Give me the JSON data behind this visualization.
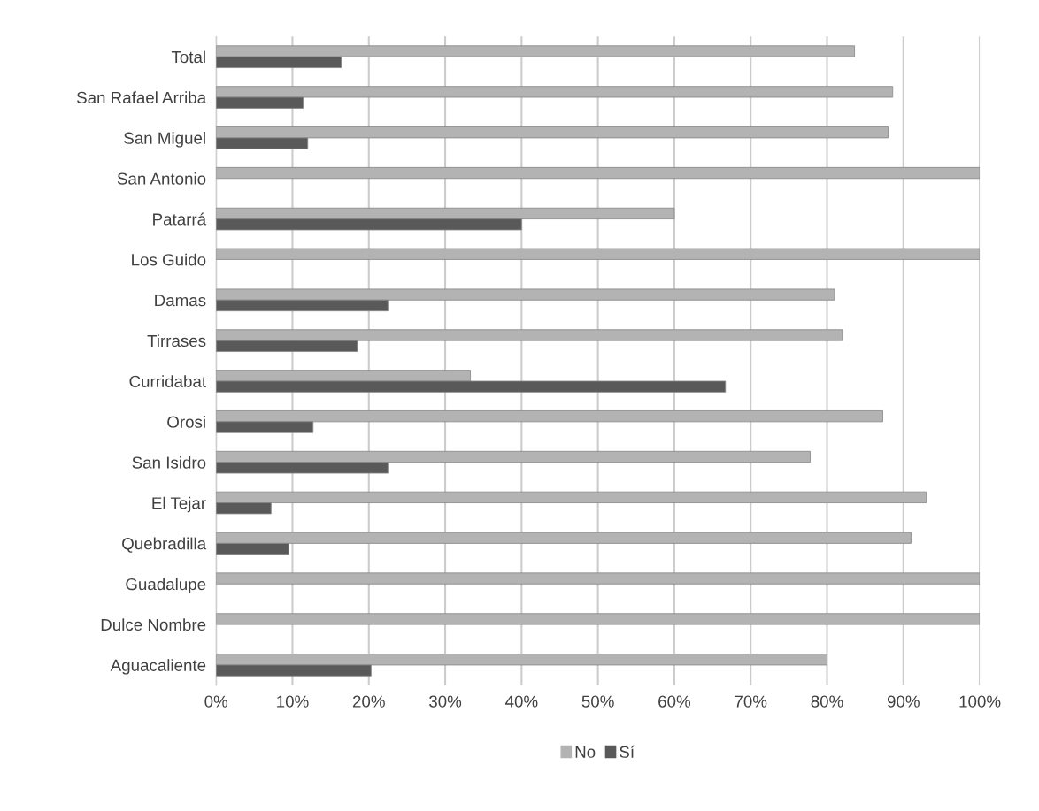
{
  "chart_data": {
    "type": "bar",
    "orientation": "horizontal",
    "categories": [
      "Total",
      "San Rafael Arriba",
      "San Miguel",
      "San Antonio",
      "Patarrá",
      "Los Guido",
      "Damas",
      "Tirrases",
      "Curridabat",
      "Orosi",
      "San Isidro",
      "El Tejar",
      "Quebradilla",
      "Guadalupe",
      "Dulce Nombre",
      "Aguacaliente"
    ],
    "series": [
      {
        "name": "No",
        "color": "#b3b3b3",
        "values": [
          83.6,
          88.6,
          88.0,
          100,
          60,
          100,
          81,
          82,
          33.3,
          87.3,
          77.8,
          93,
          91,
          100,
          100,
          80
        ]
      },
      {
        "name": "Sí",
        "color": "#595959",
        "values": [
          16.4,
          11.4,
          12.0,
          null,
          40,
          null,
          22.5,
          18.5,
          66.7,
          12.7,
          22.5,
          7.2,
          9.5,
          null,
          null,
          20.3
        ]
      }
    ],
    "xlim": [
      0,
      100
    ],
    "xticks": [
      {
        "value": 0,
        "label": "0%"
      },
      {
        "value": 10,
        "label": "10%"
      },
      {
        "value": 20,
        "label": "20%"
      },
      {
        "value": 30,
        "label": "30%"
      },
      {
        "value": 40,
        "label": "40%"
      },
      {
        "value": 50,
        "label": "50%"
      },
      {
        "value": 60,
        "label": "60%"
      },
      {
        "value": 70,
        "label": "70%"
      },
      {
        "value": 80,
        "label": "80%"
      },
      {
        "value": 90,
        "label": "90%"
      },
      {
        "value": 100,
        "label": "100%"
      }
    ],
    "grid": "x",
    "legend": "bottom"
  }
}
